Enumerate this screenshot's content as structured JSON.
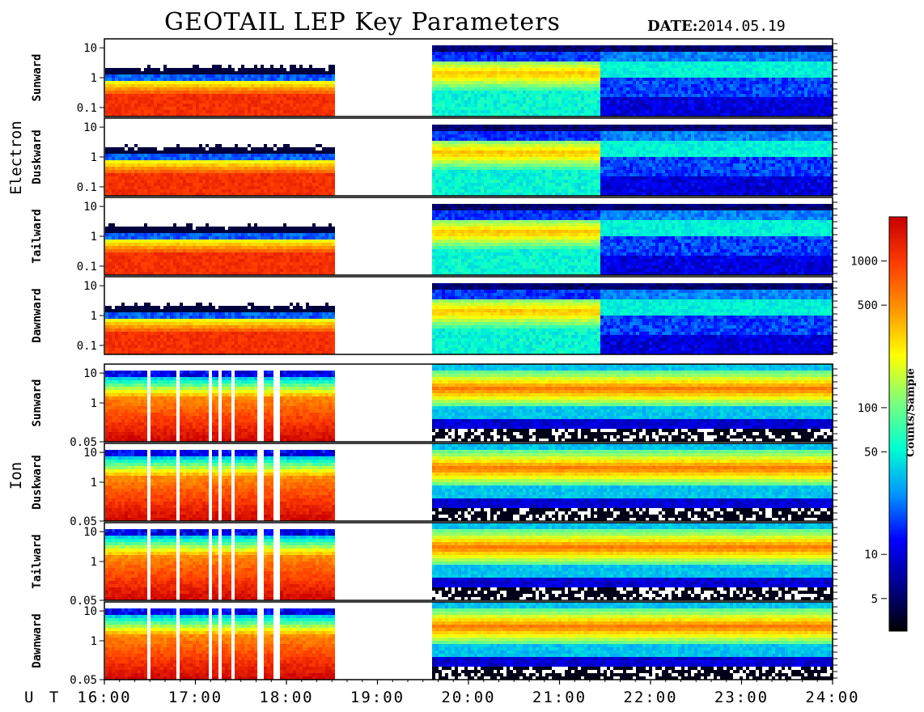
{
  "chart_data": {
    "type": "heatmap",
    "title": "GEOTAIL LEP Key Parameters",
    "date_label": "DATE:",
    "date_value": "2014.05.19",
    "time_axis": {
      "label": "U T",
      "start": "16:00",
      "end": "24:00",
      "ticks": [
        "16:00",
        "17:00",
        "18:00",
        "19:00",
        "20:00",
        "21:00",
        "22:00",
        "23:00",
        "24:00"
      ],
      "data_gaps": [
        [
          "18:32",
          "19:34"
        ]
      ]
    },
    "colorbar": {
      "label": "Counts/Sample",
      "scale": "log",
      "range": [
        3,
        2000
      ],
      "ticks": [
        5,
        10,
        50,
        100,
        500,
        1000
      ],
      "colormap": [
        "#000000",
        "#00008b",
        "#0000ff",
        "#0096ff",
        "#00ffd0",
        "#7dff7d",
        "#ffff00",
        "#ff9600",
        "#ff3c00",
        "#c80000"
      ]
    },
    "groups": [
      {
        "name": "Electron",
        "panels": [
          {
            "direction": "Sunward",
            "yticks": [
              "10",
              "1",
              "0.1"
            ]
          },
          {
            "direction": "Duskward",
            "yticks": [
              "10",
              "1",
              "0.1"
            ]
          },
          {
            "direction": "Tailward",
            "yticks": [
              "10",
              "1",
              "0.1"
            ]
          },
          {
            "direction": "Dawnward",
            "yticks": [
              "10",
              "1",
              "0.1"
            ]
          }
        ],
        "y_scale": "log",
        "y_range": [
          0.05,
          20
        ]
      },
      {
        "name": "Ion",
        "panels": [
          {
            "direction": "Sunward",
            "yticks": [
              "10",
              "1",
              "0.05"
            ]
          },
          {
            "direction": "Duskward",
            "yticks": [
              "10",
              "1",
              "0.05"
            ]
          },
          {
            "direction": "Tailward",
            "yticks": [
              "10",
              "1",
              "0.05"
            ]
          },
          {
            "direction": "Dawnward",
            "yticks": [
              "10",
              "1",
              "0.05"
            ]
          }
        ],
        "y_scale": "log",
        "y_range": [
          0.05,
          20
        ]
      }
    ]
  }
}
